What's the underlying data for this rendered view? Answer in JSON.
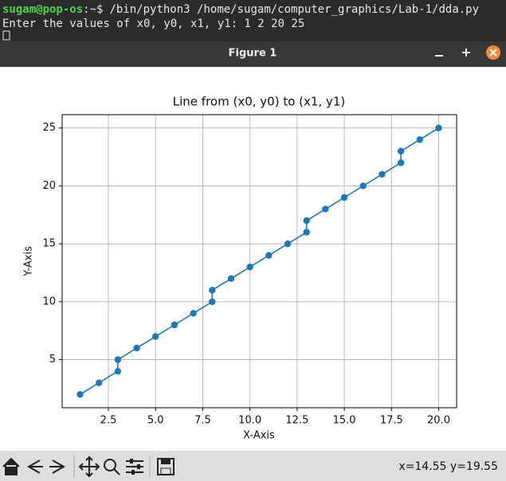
{
  "terminal": {
    "prompt_user": "sugam@pop-os",
    "prompt_suffix": ":~$",
    "command": "/bin/python3 /home/sugam/computer_graphics/Lab-1/dda.py",
    "output": "Enter the values of x0, y0, x1, y1: 1 2 20 25"
  },
  "window": {
    "title": "Figure 1"
  },
  "chart_data": {
    "type": "line",
    "title": "Line from (x0, y0) to (x1, y1)",
    "xlabel": "X-Axis",
    "ylabel": "Y-Axis",
    "x": [
      1,
      2,
      3,
      3,
      4,
      5,
      6,
      7,
      8,
      8,
      9,
      10,
      11,
      12,
      13,
      13,
      14,
      15,
      16,
      17,
      18,
      18,
      19,
      20
    ],
    "values": [
      2,
      3,
      4,
      5,
      6,
      7,
      8,
      9,
      10,
      11,
      12,
      13,
      14,
      15,
      16,
      17,
      18,
      19,
      20,
      21,
      22,
      23,
      24,
      25
    ],
    "color": "#1f77b4",
    "markers": true,
    "grid": true,
    "xlim": [
      0.05,
      20.95
    ],
    "ylim": [
      0.85,
      26.15
    ],
    "xticks": [
      {
        "value": 2.5,
        "label": "2.5"
      },
      {
        "value": 5,
        "label": "5.0"
      },
      {
        "value": 7.5,
        "label": "7.5"
      },
      {
        "value": 10,
        "label": "10.0"
      },
      {
        "value": 12.5,
        "label": "12.5"
      },
      {
        "value": 15,
        "label": "15.0"
      },
      {
        "value": 17.5,
        "label": "17.5"
      },
      {
        "value": 20,
        "label": "20.0"
      }
    ],
    "yticks": [
      5,
      10,
      15,
      20,
      25
    ]
  },
  "toolbar": {
    "status": "x=14.55 y=19.55"
  }
}
